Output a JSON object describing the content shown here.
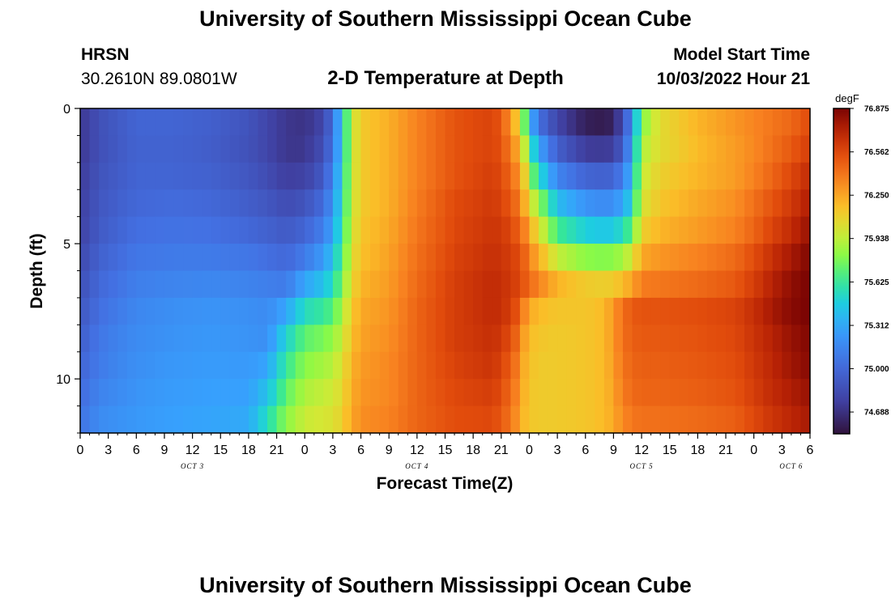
{
  "header": {
    "title": "University of Southern Mississippi Ocean Cube",
    "station": "HRSN",
    "coordinates": "30.2610N  89.0801W",
    "subtitle": "2-D Temperature at Depth",
    "model_start_label": "Model Start Time",
    "model_start_value": "10/03/2022 Hour 21"
  },
  "footer": {
    "title": "University of Southern Mississippi Ocean Cube"
  },
  "chart_data": {
    "type": "heatmap",
    "title": "2-D Temperature at Depth",
    "xlabel": "Forecast Time(Z)",
    "ylabel": "Depth (ft)",
    "colorbar_label": "degF",
    "colorbar_ticks": [
      "74.688",
      "75.000",
      "75.312",
      "75.625",
      "75.938",
      "76.250",
      "76.562",
      "76.875"
    ],
    "value_range": [
      74.531,
      76.875
    ],
    "x_range": [
      0,
      78
    ],
    "x_ticks": [
      "0",
      "3",
      "6",
      "9",
      "12",
      "15",
      "18",
      "21",
      "0",
      "3",
      "6",
      "9",
      "12",
      "15",
      "18",
      "21",
      "0",
      "3",
      "6",
      "9",
      "12",
      "15",
      "18",
      "21",
      "0",
      "3",
      "6"
    ],
    "date_labels": [
      {
        "label": "OCT 3",
        "hour": 12
      },
      {
        "label": "OCT 4",
        "hour": 36
      },
      {
        "label": "OCT 5",
        "hour": 60
      },
      {
        "label": "OCT 6",
        "hour": 76
      }
    ],
    "y_range": [
      0,
      12
    ],
    "y_ticks": [
      "0",
      "5",
      "10"
    ],
    "y_tick_values": [
      0,
      5,
      10
    ],
    "depth_rows_ft": [
      0.5,
      1.5,
      2.5,
      3.5,
      4.5,
      5.5,
      6.5,
      7.5,
      8.5,
      9.5,
      10.5,
      11.5
    ],
    "time_keypoints_hours": [
      0,
      2,
      6,
      10,
      14,
      18,
      20,
      22,
      24,
      26,
      27,
      28,
      29,
      30,
      33,
      36,
      40,
      44,
      45,
      46,
      47,
      47.5,
      48,
      49,
      51,
      54,
      56,
      57,
      58,
      59,
      60,
      62,
      66,
      70,
      72,
      74,
      76,
      78
    ],
    "temperature_degF": [
      [
        74.72,
        74.86,
        74.98,
        74.98,
        74.95,
        74.88,
        74.8,
        74.72,
        74.7,
        74.8,
        75.05,
        75.45,
        75.95,
        76.12,
        76.22,
        76.36,
        76.52,
        76.58,
        76.5,
        76.3,
        76.05,
        75.75,
        75.4,
        75.05,
        74.8,
        74.6,
        74.58,
        74.62,
        74.85,
        75.2,
        75.8,
        76.05,
        76.2,
        76.3,
        76.35,
        76.4,
        76.45,
        76.55
      ],
      [
        74.72,
        74.86,
        74.97,
        74.97,
        74.94,
        74.87,
        74.8,
        74.72,
        74.72,
        74.85,
        75.08,
        75.45,
        75.95,
        76.12,
        76.22,
        76.36,
        76.52,
        76.58,
        76.52,
        76.38,
        76.18,
        75.95,
        75.65,
        75.3,
        74.95,
        74.75,
        74.74,
        74.76,
        74.95,
        75.28,
        75.9,
        76.05,
        76.18,
        76.28,
        76.34,
        76.42,
        76.5,
        76.6
      ],
      [
        74.74,
        74.88,
        74.98,
        74.98,
        74.96,
        74.9,
        74.84,
        74.76,
        74.78,
        74.92,
        75.15,
        75.5,
        75.95,
        76.12,
        76.22,
        76.36,
        76.52,
        76.6,
        76.55,
        76.45,
        76.28,
        76.1,
        75.85,
        75.55,
        75.15,
        74.98,
        74.96,
        74.98,
        75.12,
        75.38,
        75.95,
        76.1,
        76.2,
        76.28,
        76.36,
        76.46,
        76.56,
        76.68
      ],
      [
        74.76,
        74.9,
        75.0,
        75.02,
        75.0,
        74.94,
        74.9,
        74.84,
        74.88,
        75.02,
        75.22,
        75.55,
        75.95,
        76.12,
        76.22,
        76.38,
        76.55,
        76.62,
        76.58,
        76.5,
        76.38,
        76.22,
        76.05,
        75.85,
        75.4,
        75.22,
        75.18,
        75.2,
        75.3,
        75.5,
        76.0,
        76.14,
        76.24,
        76.32,
        76.42,
        76.52,
        76.62,
        76.74
      ],
      [
        74.78,
        74.92,
        75.04,
        75.06,
        75.05,
        75.0,
        74.96,
        74.92,
        74.98,
        75.12,
        75.3,
        75.6,
        75.98,
        76.14,
        76.24,
        76.4,
        76.56,
        76.64,
        76.62,
        76.56,
        76.46,
        76.36,
        76.22,
        76.05,
        75.65,
        75.48,
        75.44,
        75.46,
        75.55,
        75.72,
        76.1,
        76.2,
        76.28,
        76.36,
        76.46,
        76.58,
        76.68,
        76.8
      ],
      [
        74.82,
        74.96,
        75.08,
        75.1,
        75.1,
        75.08,
        75.04,
        75.0,
        75.1,
        75.25,
        75.42,
        75.68,
        76.02,
        76.16,
        76.26,
        76.42,
        76.58,
        76.66,
        76.64,
        76.6,
        76.54,
        76.46,
        76.36,
        76.22,
        75.95,
        75.82,
        75.8,
        75.82,
        75.88,
        76.0,
        76.24,
        76.3,
        76.36,
        76.44,
        76.54,
        76.66,
        76.76,
        76.86
      ],
      [
        74.86,
        75.0,
        75.12,
        75.15,
        75.16,
        75.14,
        75.12,
        75.1,
        75.3,
        75.42,
        75.55,
        75.78,
        76.06,
        76.2,
        76.28,
        76.44,
        76.6,
        76.68,
        76.66,
        76.62,
        76.56,
        76.5,
        76.44,
        76.36,
        76.2,
        76.12,
        76.1,
        76.12,
        76.18,
        76.26,
        76.38,
        76.4,
        76.44,
        76.5,
        76.6,
        76.72,
        76.82,
        76.88
      ],
      [
        74.9,
        75.04,
        75.16,
        75.2,
        75.22,
        75.2,
        75.18,
        75.3,
        75.55,
        75.62,
        75.7,
        75.88,
        76.12,
        76.24,
        76.3,
        76.46,
        76.6,
        76.68,
        76.66,
        76.6,
        76.48,
        76.34,
        76.24,
        76.18,
        76.14,
        76.14,
        76.18,
        76.3,
        76.42,
        76.5,
        76.52,
        76.52,
        76.54,
        76.58,
        76.66,
        76.76,
        76.84,
        76.88
      ],
      [
        74.94,
        75.08,
        75.18,
        75.22,
        75.24,
        75.22,
        75.2,
        75.5,
        75.72,
        75.78,
        75.84,
        75.96,
        76.16,
        76.26,
        76.32,
        76.46,
        76.6,
        76.66,
        76.62,
        76.54,
        76.4,
        76.26,
        76.18,
        76.14,
        76.12,
        76.14,
        76.18,
        76.3,
        76.42,
        76.48,
        76.5,
        76.5,
        76.52,
        76.56,
        76.64,
        76.72,
        76.8,
        76.86
      ],
      [
        74.98,
        75.1,
        75.2,
        75.24,
        75.26,
        75.25,
        75.3,
        75.62,
        75.82,
        75.88,
        75.92,
        76.02,
        76.2,
        76.28,
        76.34,
        76.46,
        76.58,
        76.64,
        76.58,
        76.48,
        76.34,
        76.22,
        76.16,
        76.12,
        76.12,
        76.14,
        76.18,
        76.28,
        76.4,
        76.46,
        76.48,
        76.48,
        76.5,
        76.54,
        76.62,
        76.7,
        76.78,
        76.84
      ],
      [
        75.02,
        75.14,
        75.22,
        75.26,
        75.28,
        75.28,
        75.42,
        75.72,
        75.9,
        75.95,
        75.98,
        76.06,
        76.22,
        76.3,
        76.34,
        76.46,
        76.56,
        76.6,
        76.54,
        76.44,
        76.3,
        76.2,
        76.14,
        76.12,
        76.12,
        76.14,
        76.18,
        76.26,
        76.38,
        76.44,
        76.46,
        76.46,
        76.48,
        76.52,
        76.6,
        76.68,
        76.74,
        76.8
      ],
      [
        75.06,
        75.18,
        75.24,
        75.28,
        75.3,
        75.32,
        75.55,
        75.82,
        75.96,
        76.0,
        76.02,
        76.1,
        76.24,
        76.32,
        76.36,
        76.46,
        76.54,
        76.56,
        76.5,
        76.4,
        76.26,
        76.18,
        76.14,
        76.12,
        76.12,
        76.14,
        76.18,
        76.24,
        76.34,
        76.4,
        76.42,
        76.42,
        76.44,
        76.48,
        76.56,
        76.64,
        76.7,
        76.76
      ]
    ]
  }
}
